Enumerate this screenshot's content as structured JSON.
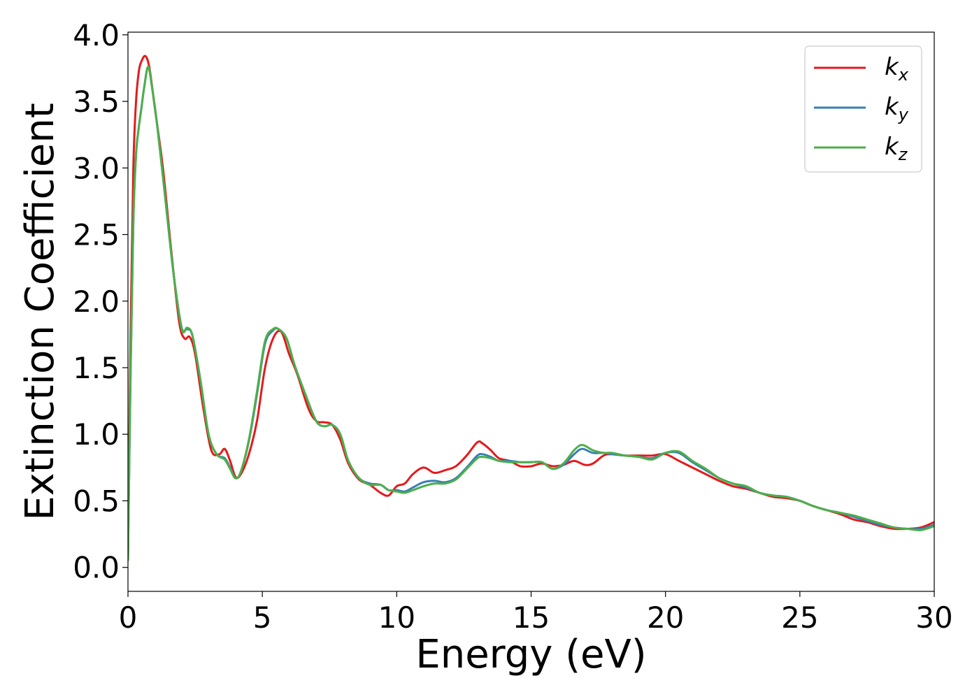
{
  "chart_data": {
    "type": "line",
    "xlabel": "Energy (eV)",
    "ylabel": "Extinction Coefficient",
    "xlim": [
      0,
      30
    ],
    "ylim": [
      -0.18,
      4.02
    ],
    "xticks": [
      0,
      5,
      10,
      15,
      20,
      25,
      30
    ],
    "xtick_labels": [
      "0",
      "5",
      "10",
      "15",
      "20",
      "25",
      "30"
    ],
    "yticks": [
      0.0,
      0.5,
      1.0,
      1.5,
      2.0,
      2.5,
      3.0,
      3.5,
      4.0
    ],
    "ytick_labels": [
      "0.0",
      "0.5",
      "1.0",
      "1.5",
      "2.0",
      "2.5",
      "3.0",
      "3.5",
      "4.0"
    ],
    "grid": false,
    "legend_position": "top-right",
    "series": [
      {
        "name": "k",
        "subscript": "x",
        "color": "#e41a1c",
        "x": [
          0,
          0.1,
          0.2,
          0.3,
          0.4,
          0.5,
          0.65,
          0.8,
          1.0,
          1.3,
          1.6,
          1.9,
          2.1,
          2.3,
          2.5,
          2.8,
          3.1,
          3.4,
          3.6,
          3.8,
          4.0,
          4.2,
          4.5,
          4.8,
          5.1,
          5.4,
          5.7,
          6.0,
          6.3,
          6.7,
          7.0,
          7.3,
          7.6,
          7.9,
          8.2,
          8.6,
          9.0,
          9.4,
          9.7,
          10.0,
          10.3,
          10.6,
          11.0,
          11.4,
          11.8,
          12.2,
          12.6,
          13.0,
          13.2,
          13.5,
          13.8,
          14.2,
          14.6,
          15.0,
          15.4,
          15.8,
          16.2,
          16.6,
          17.0,
          17.3,
          17.7,
          18.0,
          18.5,
          19.0,
          19.5,
          20.0,
          20.5,
          21.0,
          21.5,
          22.0,
          22.5,
          23.0,
          23.5,
          24.0,
          24.5,
          25.0,
          25.5,
          26.0,
          26.5,
          27.0,
          27.5,
          28.0,
          28.5,
          29.0,
          29.5,
          30.0
        ],
        "y": [
          0.05,
          1.8,
          3.0,
          3.5,
          3.72,
          3.8,
          3.84,
          3.75,
          3.45,
          3.0,
          2.4,
          1.85,
          1.72,
          1.73,
          1.6,
          1.2,
          0.88,
          0.85,
          0.89,
          0.8,
          0.68,
          0.7,
          0.85,
          1.1,
          1.5,
          1.72,
          1.77,
          1.6,
          1.45,
          1.2,
          1.1,
          1.09,
          1.07,
          0.96,
          0.78,
          0.66,
          0.62,
          0.56,
          0.54,
          0.61,
          0.63,
          0.7,
          0.75,
          0.71,
          0.73,
          0.76,
          0.84,
          0.94,
          0.93,
          0.88,
          0.82,
          0.8,
          0.76,
          0.76,
          0.78,
          0.76,
          0.77,
          0.8,
          0.77,
          0.78,
          0.84,
          0.85,
          0.84,
          0.84,
          0.84,
          0.85,
          0.8,
          0.75,
          0.7,
          0.65,
          0.61,
          0.59,
          0.56,
          0.53,
          0.52,
          0.5,
          0.46,
          0.43,
          0.4,
          0.36,
          0.34,
          0.31,
          0.29,
          0.29,
          0.3,
          0.34
        ]
      },
      {
        "name": "k",
        "subscript": "y",
        "color": "#377eb8",
        "x": [
          0,
          0.1,
          0.2,
          0.3,
          0.4,
          0.5,
          0.6,
          0.75,
          0.9,
          1.1,
          1.4,
          1.7,
          2.0,
          2.2,
          2.4,
          2.7,
          3.0,
          3.3,
          3.6,
          3.8,
          4.0,
          4.2,
          4.5,
          4.8,
          5.1,
          5.4,
          5.6,
          5.9,
          6.2,
          6.6,
          7.0,
          7.3,
          7.6,
          7.9,
          8.2,
          8.6,
          9.0,
          9.4,
          9.7,
          10.0,
          10.3,
          10.6,
          11.0,
          11.4,
          11.8,
          12.2,
          12.6,
          13.0,
          13.2,
          13.5,
          13.8,
          14.2,
          14.6,
          15.0,
          15.4,
          15.8,
          16.2,
          16.6,
          16.9,
          17.3,
          17.7,
          18.0,
          18.5,
          19.0,
          19.5,
          20.0,
          20.5,
          21.0,
          21.5,
          22.0,
          22.5,
          23.0,
          23.5,
          24.0,
          24.5,
          25.0,
          25.5,
          26.0,
          26.5,
          27.0,
          27.5,
          28.0,
          28.5,
          29.0,
          29.5,
          30.0
        ],
        "y": [
          0.05,
          1.5,
          2.6,
          3.1,
          3.3,
          3.45,
          3.6,
          3.76,
          3.6,
          3.3,
          2.75,
          2.2,
          1.8,
          1.79,
          1.74,
          1.4,
          1.0,
          0.85,
          0.82,
          0.75,
          0.67,
          0.72,
          0.95,
          1.3,
          1.68,
          1.78,
          1.79,
          1.72,
          1.52,
          1.3,
          1.1,
          1.06,
          1.07,
          1.0,
          0.8,
          0.67,
          0.63,
          0.62,
          0.58,
          0.58,
          0.57,
          0.6,
          0.64,
          0.65,
          0.64,
          0.67,
          0.75,
          0.84,
          0.85,
          0.83,
          0.8,
          0.8,
          0.79,
          0.79,
          0.79,
          0.74,
          0.77,
          0.85,
          0.89,
          0.86,
          0.86,
          0.85,
          0.84,
          0.83,
          0.82,
          0.86,
          0.86,
          0.79,
          0.73,
          0.67,
          0.63,
          0.6,
          0.56,
          0.54,
          0.53,
          0.5,
          0.46,
          0.43,
          0.41,
          0.38,
          0.35,
          0.32,
          0.3,
          0.29,
          0.29,
          0.32
        ]
      },
      {
        "name": "k",
        "subscript": "z",
        "color": "#4daf4a",
        "x": [
          0,
          0.1,
          0.2,
          0.3,
          0.4,
          0.5,
          0.6,
          0.75,
          0.9,
          1.1,
          1.4,
          1.7,
          2.0,
          2.2,
          2.4,
          2.7,
          3.0,
          3.3,
          3.6,
          3.8,
          4.0,
          4.2,
          4.5,
          4.8,
          5.1,
          5.4,
          5.6,
          5.9,
          6.2,
          6.6,
          7.0,
          7.3,
          7.6,
          7.9,
          8.2,
          8.6,
          9.0,
          9.4,
          9.7,
          10.0,
          10.3,
          10.6,
          11.0,
          11.4,
          11.8,
          12.2,
          12.6,
          13.0,
          13.2,
          13.5,
          13.8,
          14.2,
          14.6,
          15.0,
          15.4,
          15.8,
          16.2,
          16.6,
          16.9,
          17.3,
          17.7,
          18.0,
          18.5,
          19.0,
          19.5,
          20.0,
          20.5,
          21.0,
          21.5,
          22.0,
          22.5,
          23.0,
          23.5,
          24.0,
          24.5,
          25.0,
          25.5,
          26.0,
          26.5,
          27.0,
          27.5,
          28.0,
          28.5,
          29.0,
          29.5,
          30.0
        ],
        "y": [
          0.05,
          1.5,
          2.6,
          3.1,
          3.3,
          3.45,
          3.6,
          3.76,
          3.6,
          3.3,
          2.75,
          2.2,
          1.79,
          1.8,
          1.74,
          1.4,
          1.0,
          0.85,
          0.81,
          0.74,
          0.67,
          0.72,
          0.96,
          1.32,
          1.7,
          1.79,
          1.79,
          1.72,
          1.52,
          1.3,
          1.1,
          1.06,
          1.07,
          1.0,
          0.8,
          0.67,
          0.62,
          0.62,
          0.58,
          0.57,
          0.56,
          0.58,
          0.61,
          0.63,
          0.63,
          0.66,
          0.74,
          0.82,
          0.83,
          0.82,
          0.8,
          0.79,
          0.79,
          0.79,
          0.79,
          0.74,
          0.78,
          0.88,
          0.92,
          0.88,
          0.86,
          0.86,
          0.84,
          0.83,
          0.81,
          0.86,
          0.87,
          0.8,
          0.74,
          0.67,
          0.63,
          0.61,
          0.56,
          0.54,
          0.53,
          0.5,
          0.46,
          0.43,
          0.41,
          0.39,
          0.36,
          0.33,
          0.3,
          0.29,
          0.28,
          0.31
        ]
      }
    ]
  }
}
